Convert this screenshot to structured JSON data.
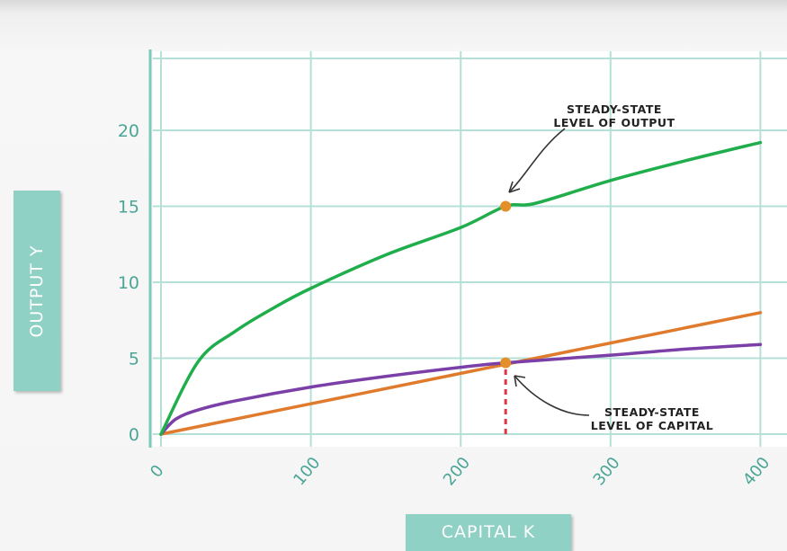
{
  "chart_data": {
    "type": "line",
    "xlabel": "CAPITAL K",
    "ylabel": "OUTPUT Y",
    "xlim": [
      0,
      400
    ],
    "ylim": [
      0,
      25
    ],
    "x_ticks": [
      0,
      100,
      200,
      300,
      400
    ],
    "y_ticks": [
      0,
      5,
      10,
      15,
      20
    ],
    "grid": true,
    "series": [
      {
        "color": "#1fae4b",
        "points": [
          [
            0,
            0
          ],
          [
            25,
            4.8
          ],
          [
            50,
            6.8
          ],
          [
            75,
            8.3
          ],
          [
            100,
            9.6
          ],
          [
            150,
            11.8
          ],
          [
            200,
            13.6
          ],
          [
            230,
            15
          ],
          [
            250,
            15.2
          ],
          [
            300,
            16.7
          ],
          [
            350,
            18.0
          ],
          [
            400,
            19.2
          ]
        ]
      },
      {
        "color": "#e07b2e",
        "points": [
          [
            0,
            0
          ],
          [
            100,
            2.0
          ],
          [
            200,
            4.0
          ],
          [
            230,
            4.6
          ],
          [
            300,
            6.0
          ],
          [
            400,
            8.0
          ]
        ]
      },
      {
        "color": "#7b3fa8",
        "points": [
          [
            0,
            0
          ],
          [
            10,
            1.0
          ],
          [
            25,
            1.6
          ],
          [
            50,
            2.2
          ],
          [
            100,
            3.1
          ],
          [
            150,
            3.8
          ],
          [
            200,
            4.4
          ],
          [
            230,
            4.7
          ],
          [
            300,
            5.2
          ],
          [
            350,
            5.6
          ],
          [
            400,
            5.9
          ]
        ]
      }
    ],
    "markers": [
      {
        "x": 230,
        "y": 15,
        "color": "#e3902b"
      },
      {
        "x": 230,
        "y": 4.7,
        "color": "#e3902b"
      }
    ],
    "dashed_line": {
      "x": 230,
      "y_from": 0,
      "y_to": 4.7,
      "color": "#e03545"
    },
    "annotations": [
      {
        "id": "output",
        "lines": [
          "STEADY-STATE",
          "LEVEL OF OUTPUT"
        ]
      },
      {
        "id": "capital",
        "lines": [
          "STEADY-STATE",
          "LEVEL OF CAPITAL"
        ]
      }
    ]
  }
}
